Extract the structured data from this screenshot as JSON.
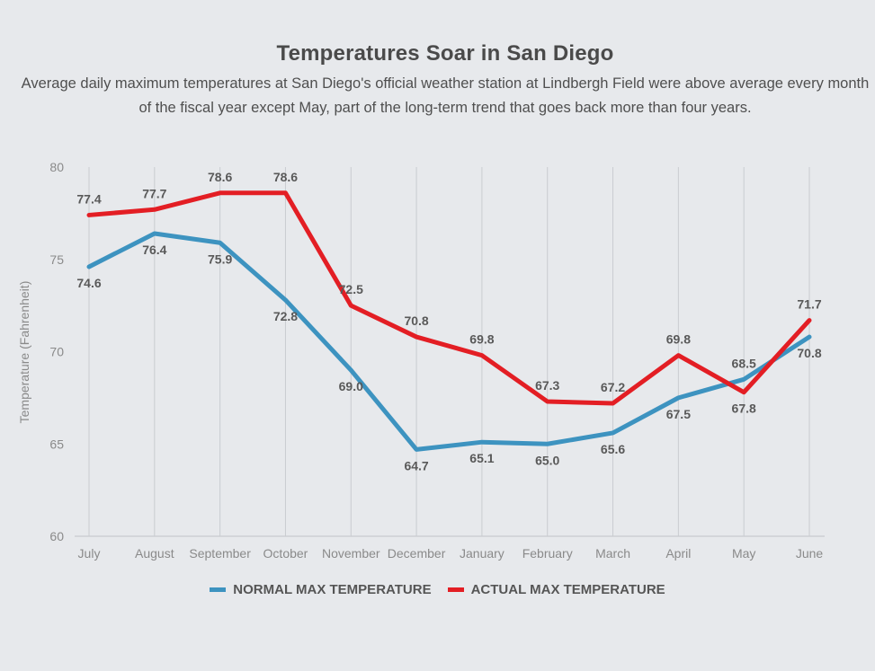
{
  "title": "Temperatures Soar in San Diego",
  "subtitle": "Average daily maximum temperatures at San Diego's official weather station at Lindbergh Field were above average every month of the fiscal year except May, part of the long-term trend that goes back more than four years.",
  "colors": {
    "normal": "#3d93c0",
    "actual": "#e31e24",
    "grid": "#c9ccd0",
    "background": "#e7e9ec"
  },
  "chart_data": {
    "type": "line",
    "categories": [
      "July",
      "August",
      "September",
      "October",
      "November",
      "December",
      "January",
      "February",
      "March",
      "April",
      "May",
      "June"
    ],
    "series": [
      {
        "name": "NORMAL MAX TEMPERATURE",
        "values": [
          74.6,
          76.4,
          75.9,
          72.8,
          69.0,
          64.7,
          65.1,
          65.0,
          65.6,
          67.5,
          68.5,
          70.8
        ],
        "labels": [
          "74.6",
          "76.4",
          "75.9",
          "72.8",
          "69.0",
          "64.7",
          "65.1",
          "65.0",
          "65.6",
          "67.5",
          "68.5",
          "70.8"
        ]
      },
      {
        "name": "ACTUAL MAX TEMPERATURE",
        "values": [
          77.4,
          77.7,
          78.6,
          78.6,
          72.5,
          70.8,
          69.8,
          67.3,
          67.2,
          69.8,
          67.8,
          71.7
        ],
        "labels": [
          "77.4",
          "77.7",
          "78.6",
          "78.6",
          "72.5",
          "70.8",
          "69.8",
          "67.3",
          "67.2",
          "69.8",
          "67.8",
          "71.7"
        ]
      }
    ],
    "ylabel": "Temperature (Fahrenheit)",
    "ylim": [
      60,
      80
    ],
    "yticks": [
      60,
      65,
      70,
      75,
      80
    ],
    "grid": "vertical",
    "legend": "bottom-center"
  }
}
